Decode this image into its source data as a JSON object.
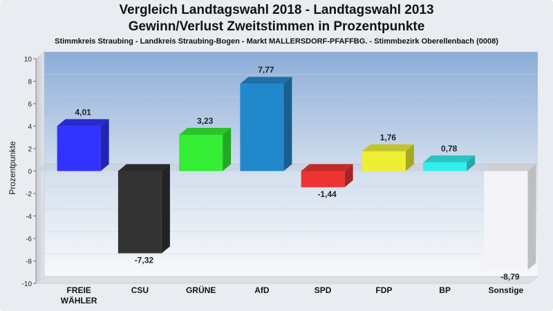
{
  "chart_data": {
    "type": "bar",
    "title": "Vergleich Landtagswahl 2018 - Landtagswahl 2013",
    "subtitle": "Gewinn/Verlust Zweitstimmen in Prozentpunkte",
    "caption": "Stimmkreis Straubing - Landkreis Straubing-Bogen - Markt MALLERSDORF-PFAFFBG. - Stimmbezirk Oberellenbach (0008)",
    "ylabel": "Prozentpunkte",
    "xlabel": "",
    "ylim": [
      -10,
      10
    ],
    "yticks": [
      10,
      8,
      6,
      4,
      2,
      0,
      -2,
      -4,
      -6,
      -8,
      -10
    ],
    "grid": true,
    "categories": [
      "FREIE WÄHLER",
      "CSU",
      "GRÜNE",
      "AfD",
      "SPD",
      "FDP",
      "BP",
      "Sonstige"
    ],
    "values": [
      4.01,
      -7.32,
      3.23,
      7.77,
      -1.44,
      1.76,
      0.78,
      -8.79
    ],
    "value_labels": [
      "4,01",
      "-7,32",
      "3,23",
      "7,77",
      "-1,44",
      "1,76",
      "0,78",
      "-8,79"
    ],
    "colors": [
      "#3333ff",
      "#333333",
      "#33ee33",
      "#2288cc",
      "#ee3333",
      "#eeee33",
      "#33eeee",
      "#f4f4f8"
    ]
  }
}
